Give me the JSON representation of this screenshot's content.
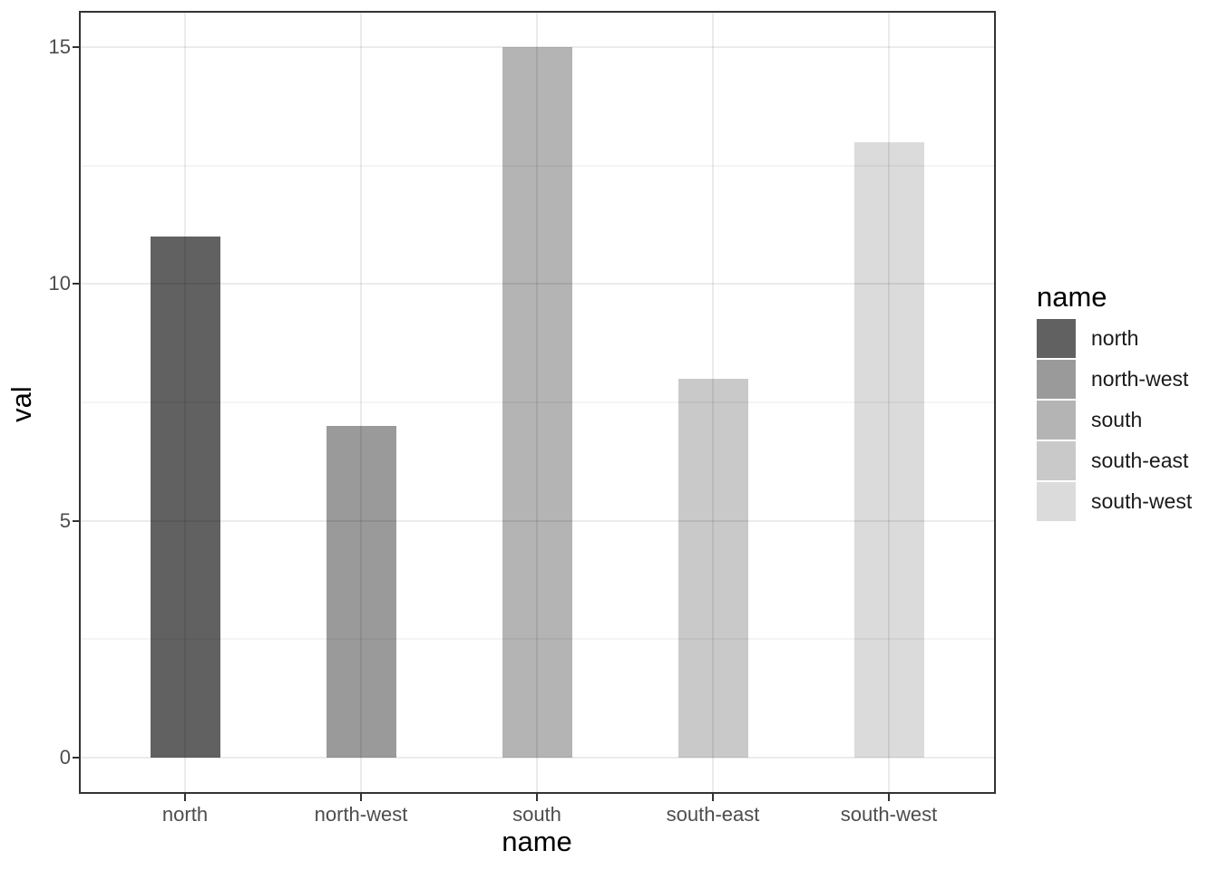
{
  "chart_data": {
    "type": "bar",
    "title": "",
    "xlabel": "name",
    "ylabel": "val",
    "categories": [
      "north",
      "north-west",
      "south",
      "south-east",
      "south-west"
    ],
    "values": [
      11,
      7,
      15,
      8,
      13
    ],
    "bar_colors": [
      "#616161",
      "#9a9a9a",
      "#b4b4b4",
      "#c9c9c9",
      "#dbdbdb"
    ],
    "ylim": [
      -0.75,
      15.75
    ],
    "yticks": [
      0,
      5,
      10,
      15
    ],
    "ytick_labels": [
      "0",
      "5",
      "10",
      "15"
    ],
    "yminor": [
      2.5,
      7.5,
      12.5
    ],
    "grid": "horizontal major+minor, vertical major at categories, drawn over bars",
    "legend": {
      "title": "name",
      "position": "right",
      "entries": [
        {
          "label": "north",
          "color": "#616161"
        },
        {
          "label": "north-west",
          "color": "#9a9a9a"
        },
        {
          "label": "south",
          "color": "#b4b4b4"
        },
        {
          "label": "south-east",
          "color": "#c9c9c9"
        },
        {
          "label": "south-west",
          "color": "#dbdbdb"
        }
      ]
    },
    "style": {
      "panel_border_color": "#333333",
      "tick_mark_color": "#333333",
      "tick_label_color": "#4d4d4d",
      "axis_title_color": "#000000",
      "grid_major_color": "#ebebeb",
      "grid_minor_color": "#f5f5f5",
      "background": "#ffffff"
    }
  }
}
